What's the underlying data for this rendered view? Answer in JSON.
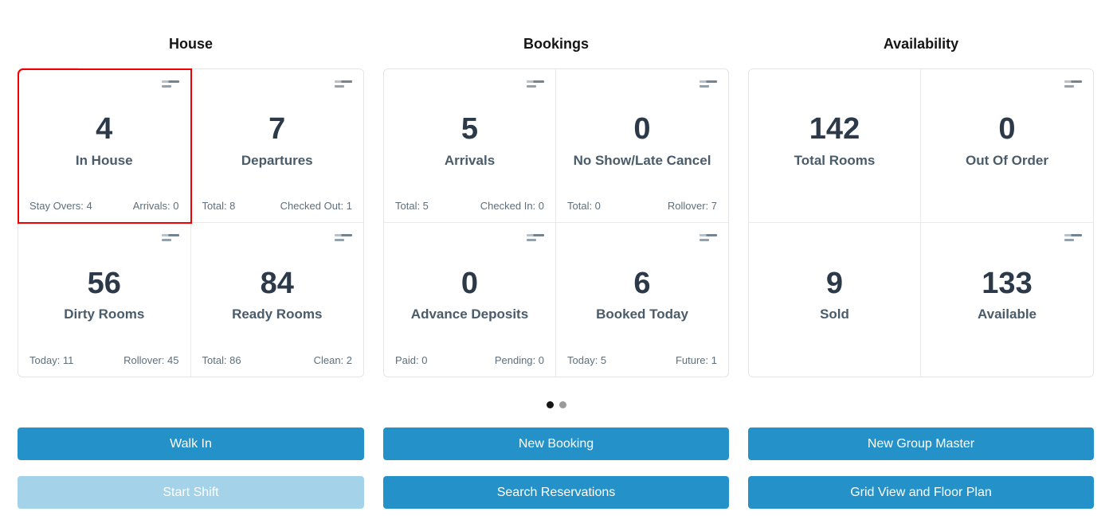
{
  "section_titles": [
    "House",
    "Bookings",
    "Availability"
  ],
  "cards": {
    "in_house": {
      "value": "4",
      "label": "In House",
      "left": "Stay Overs: 4",
      "right": "Arrivals: 0"
    },
    "departures": {
      "value": "7",
      "label": "Departures",
      "left": "Total: 8",
      "right": "Checked Out: 1"
    },
    "dirty_rooms": {
      "value": "56",
      "label": "Dirty Rooms",
      "left": "Today: 11",
      "right": "Rollover: 45"
    },
    "ready_rooms": {
      "value": "84",
      "label": "Ready Rooms",
      "left": "Total: 86",
      "right": "Clean: 2"
    },
    "arrivals": {
      "value": "5",
      "label": "Arrivals",
      "left": "Total: 5",
      "right": "Checked In: 0"
    },
    "no_show": {
      "value": "0",
      "label": "No Show/Late Cancel",
      "left": "Total: 0",
      "right": "Rollover: 7"
    },
    "advance_deposits": {
      "value": "0",
      "label": "Advance Deposits",
      "left": "Paid: 0",
      "right": "Pending: 0"
    },
    "booked_today": {
      "value": "6",
      "label": "Booked Today",
      "left": "Today: 5",
      "right": "Future: 1"
    },
    "total_rooms": {
      "value": "142",
      "label": "Total Rooms"
    },
    "out_of_order": {
      "value": "0",
      "label": "Out Of Order"
    },
    "sold": {
      "value": "9",
      "label": "Sold"
    },
    "available": {
      "value": "133",
      "label": "Available"
    }
  },
  "selected_card": "in_house",
  "buttons": {
    "walk_in": "Walk In",
    "start_shift": "Start Shift",
    "new_booking": "New Booking",
    "search_reservations": "Search Reservations",
    "new_group_master": "New Group Master",
    "grid_view_floor_plan": "Grid View and Floor Plan"
  },
  "pagination": {
    "total_dots": 2,
    "active_dot": 1
  },
  "icons": {
    "toggle_left": "grid-view-icon",
    "toggle_right": "list-view-icon",
    "card_corner": "stats-bars-icon"
  },
  "colors": {
    "accent": "#2492c8",
    "accent_disabled": "#a3d2e9",
    "selected_border": "#f20000",
    "number_text": "#2b3949",
    "label_text": "#4a5b6a",
    "stat_text": "#5e6e7a",
    "card_border": "#e2e6e9"
  }
}
